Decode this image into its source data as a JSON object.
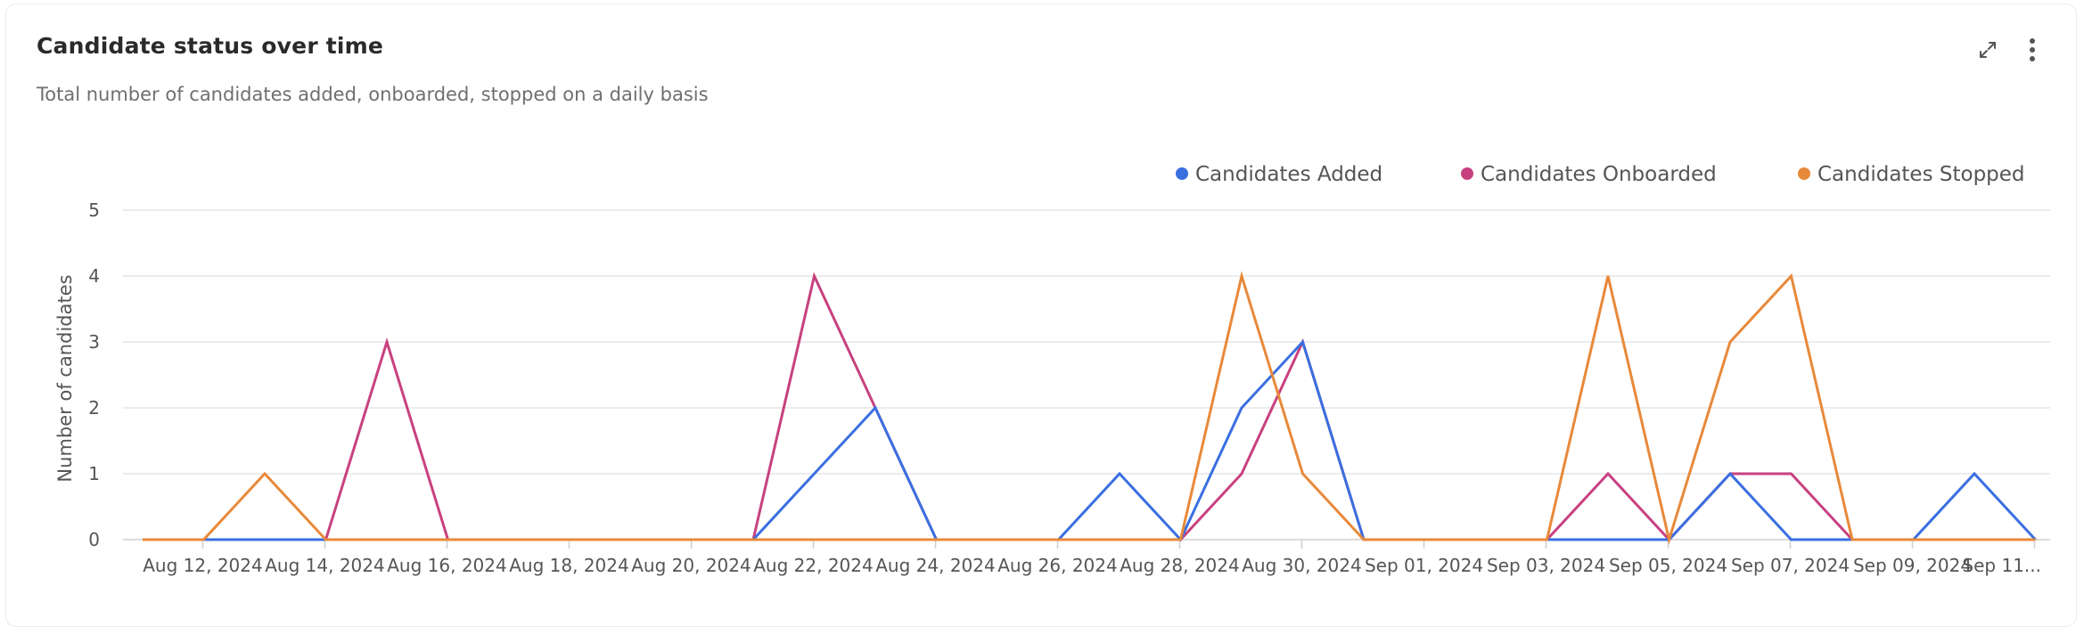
{
  "card": {
    "title": "Candidate status over time",
    "subtitle": "Total number of candidates added, onboarded, stopped on a daily basis",
    "actions": [
      {
        "icon": "expand-icon"
      },
      {
        "icon": "more-vertical-icon"
      }
    ]
  },
  "chart_data": {
    "type": "line",
    "x": [
      "2024-08-11",
      "2024-08-12",
      "2024-08-13",
      "2024-08-14",
      "2024-08-15",
      "2024-08-16",
      "2024-08-17",
      "2024-08-18",
      "2024-08-19",
      "2024-08-20",
      "2024-08-21",
      "2024-08-22",
      "2024-08-23",
      "2024-08-24",
      "2024-08-25",
      "2024-08-26",
      "2024-08-27",
      "2024-08-28",
      "2024-08-29",
      "2024-08-30",
      "2024-08-31",
      "2024-09-01",
      "2024-09-02",
      "2024-09-03",
      "2024-09-04",
      "2024-09-05",
      "2024-09-06",
      "2024-09-07",
      "2024-09-08",
      "2024-09-09",
      "2024-09-10",
      "2024-09-11"
    ],
    "x_tick_labels": [
      "Aug 12, 2024",
      "Aug 14, 2024",
      "Aug 16, 2024",
      "Aug 18, 2024",
      "Aug 20, 2024",
      "Aug 22, 2024",
      "Aug 24, 2024",
      "Aug 26, 2024",
      "Aug 28, 2024",
      "Aug 30, 2024",
      "Sep 01, 2024",
      "Sep 03, 2024",
      "Sep 05, 2024",
      "Sep 07, 2024",
      "Sep 09, 2024",
      "Sep 11..."
    ],
    "x_tick_dates": [
      "2024-08-12",
      "2024-08-14",
      "2024-08-16",
      "2024-08-18",
      "2024-08-20",
      "2024-08-22",
      "2024-08-24",
      "2024-08-26",
      "2024-08-28",
      "2024-08-30",
      "2024-09-01",
      "2024-09-03",
      "2024-09-05",
      "2024-09-07",
      "2024-09-09",
      "2024-09-11"
    ],
    "series": [
      {
        "name": "Candidates Added",
        "color": "#3a6fe0",
        "values": [
          0,
          0,
          0,
          0,
          0,
          0,
          0,
          0,
          0,
          0,
          0,
          1,
          2,
          0,
          0,
          0,
          1,
          0,
          2,
          3,
          0,
          0,
          0,
          0,
          0,
          0,
          1,
          0,
          0,
          0,
          1,
          0
        ]
      },
      {
        "name": "Candidates Onboarded",
        "color": "#c8417f",
        "values": [
          0,
          0,
          0,
          0,
          3,
          0,
          0,
          0,
          0,
          0,
          0,
          4,
          2,
          0,
          0,
          0,
          0,
          0,
          1,
          3,
          0,
          0,
          0,
          0,
          1,
          0,
          1,
          1,
          0,
          0,
          0,
          0
        ]
      },
      {
        "name": "Candidates Stopped",
        "color": "#e8893a",
        "values": [
          0,
          0,
          1,
          0,
          0,
          0,
          0,
          0,
          0,
          0,
          0,
          0,
          0,
          0,
          0,
          0,
          0,
          0,
          4,
          1,
          0,
          0,
          0,
          0,
          4,
          0,
          3,
          4,
          0,
          0,
          0,
          0
        ]
      }
    ],
    "ylabel": "Number of candidates",
    "xlabel": "",
    "ylim": [
      0,
      5
    ],
    "yticks": [
      0,
      1,
      2,
      3,
      4,
      5
    ],
    "grid": true,
    "legend": "top-right"
  }
}
